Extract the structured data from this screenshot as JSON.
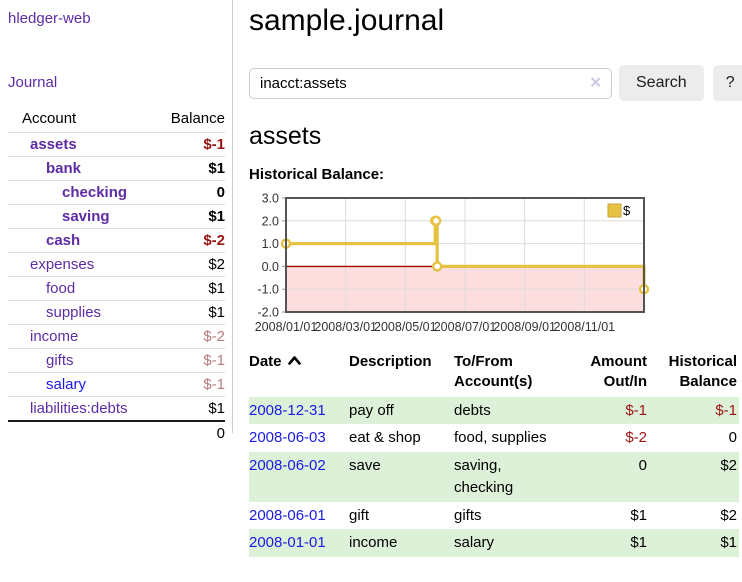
{
  "app": {
    "title": "hledger-web"
  },
  "colors": {
    "accent_purple": "#5e2ca5",
    "link_blue": "#1a1ae6",
    "neg_red": "#9d1414",
    "neg_dim": "#b97c7c",
    "row_green": "#ddf0d8",
    "chart_line": "#e6c243",
    "chart_line_border": "#c9a43a",
    "chart_neg_fill": "#fcdede",
    "chart_zero_line": "#a00000"
  },
  "sidebar": {
    "journal_link": "Journal",
    "accounts_table": {
      "headers": {
        "account": "Account",
        "balance": "Balance"
      },
      "rows": [
        {
          "account": "assets",
          "indent": 1,
          "bold": true,
          "balance": "$-1",
          "balance_style": "neg"
        },
        {
          "account": "bank",
          "indent": 2,
          "bold": true,
          "balance": "$1",
          "balance_style": "pos"
        },
        {
          "account": "checking",
          "indent": 3,
          "bold": true,
          "balance": "0",
          "balance_style": "pos"
        },
        {
          "account": "saving",
          "indent": 3,
          "bold": true,
          "balance": "$1",
          "balance_style": "pos"
        },
        {
          "account": "cash",
          "indent": 2,
          "bold": true,
          "balance": "$-2",
          "balance_style": "neg"
        },
        {
          "account": "expenses",
          "indent": 1,
          "bold": false,
          "balance": "$2",
          "balance_style": "pos"
        },
        {
          "account": "food",
          "indent": 2,
          "bold": false,
          "balance": "$1",
          "balance_style": "pos"
        },
        {
          "account": "supplies",
          "indent": 2,
          "bold": false,
          "balance": "$1",
          "balance_style": "pos"
        },
        {
          "account": "income",
          "indent": 1,
          "bold": false,
          "balance": "$-2",
          "balance_style": "neg-dim"
        },
        {
          "account": "gifts",
          "indent": 2,
          "bold": false,
          "balance": "$-1",
          "balance_style": "neg-dim"
        },
        {
          "account": "salary",
          "indent": 2,
          "bold": false,
          "balance": "$-1",
          "balance_style": "neg-dim",
          "link_color": "blue"
        },
        {
          "account": "liabilities:debts",
          "indent": 1,
          "bold": false,
          "balance": "$1",
          "balance_style": "pos"
        }
      ],
      "total": "0"
    }
  },
  "main": {
    "title": "sample.journal",
    "search": {
      "value": "inacct:assets",
      "clear_icon": "✕",
      "button": "Search",
      "help_button": "?"
    },
    "account_heading": "assets",
    "chart_label": "Historical Balance:"
  },
  "chart_data": {
    "type": "line",
    "stepped": true,
    "title": "Historical Balance",
    "series": [
      {
        "name": "$",
        "points": [
          [
            "2008-01-01",
            1
          ],
          [
            "2008-06-01",
            2
          ],
          [
            "2008-06-02",
            2
          ],
          [
            "2008-06-03",
            0
          ],
          [
            "2008-12-31",
            -1
          ]
        ]
      }
    ],
    "x_tick_labels": [
      "2008/01/01",
      "2008/03/01",
      "2008/05/01",
      "2008/07/01",
      "2008/09/01",
      "2008/11/01"
    ],
    "x_tick_months": [
      0,
      2,
      4,
      6,
      8,
      10
    ],
    "x_range_months": [
      0,
      12
    ],
    "y_ticks": [
      3.0,
      2.0,
      1.0,
      0.0,
      -1.0,
      -2.0
    ],
    "ylim": [
      -2,
      3
    ],
    "legend": {
      "label": "$",
      "position": "top-right"
    },
    "grid": true,
    "negative_region_shaded": true
  },
  "register_table": {
    "headers": [
      {
        "label": "Date",
        "align": "left",
        "sortable": true,
        "sort_dir": "up"
      },
      {
        "label": "Description",
        "align": "left"
      },
      {
        "label": "To/From Account(s)",
        "align": "left"
      },
      {
        "label": "Amount Out/In",
        "align": "right"
      },
      {
        "label": "Historical Balance",
        "align": "right"
      }
    ],
    "rows": [
      {
        "date": "2008-12-31",
        "description": "pay off",
        "accounts": "debts",
        "amount": "$-1",
        "amount_neg": true,
        "balance": "$-1",
        "balance_neg": true
      },
      {
        "date": "2008-06-03",
        "description": "eat & shop",
        "accounts": "food, supplies",
        "amount": "$-2",
        "amount_neg": true,
        "balance": "0",
        "balance_neg": false
      },
      {
        "date": "2008-06-02",
        "description": "save",
        "accounts": "saving, checking",
        "amount": "0",
        "amount_neg": false,
        "balance": "$2",
        "balance_neg": false
      },
      {
        "date": "2008-06-01",
        "description": "gift",
        "accounts": "gifts",
        "amount": "$1",
        "amount_neg": false,
        "balance": "$2",
        "balance_neg": false
      },
      {
        "date": "2008-01-01",
        "description": "income",
        "accounts": "salary",
        "amount": "$1",
        "amount_neg": false,
        "balance": "$1",
        "balance_neg": false
      }
    ]
  }
}
